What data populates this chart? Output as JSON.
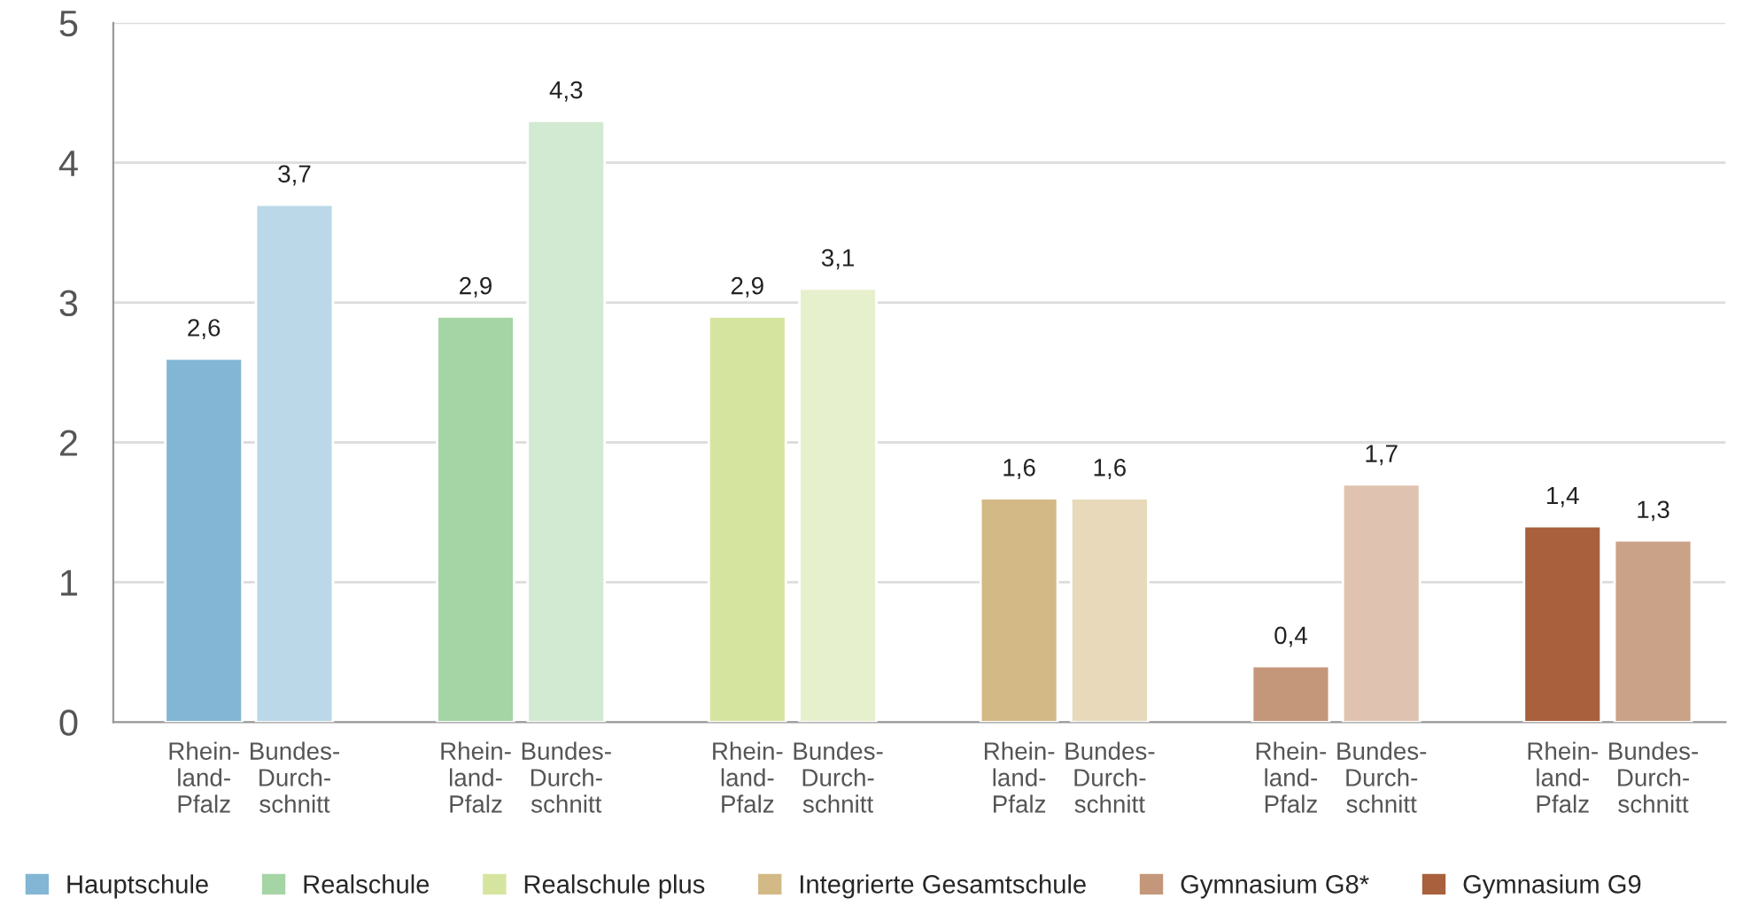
{
  "chart_data": {
    "type": "bar",
    "categories": [
      "Rhein-\nland-\nPfalz",
      "Bundes-\nDurch-\nschnitt",
      "Rhein-\nland-\nPfalz",
      "Bundes-\nDurch-\nschnitt",
      "Rhein-\nland-\nPfalz",
      "Bundes-\nDurch-\nschnitt",
      "Rhein-\nland-\nPfalz",
      "Bundes-\nDurch-\nschnitt",
      "Rhein-\nland-\nPfalz",
      "Bundes-\nDurch-\nschnitt",
      "Rhein-\nland-\nPfalz",
      "Bundes-\nDurch-\nschnitt"
    ],
    "series": [
      {
        "name": "Hauptschule",
        "color": "#82b6d4",
        "colors": [
          "#82b6d4",
          "#bad8e7",
          null,
          null,
          null,
          null,
          null,
          null,
          null,
          null,
          null,
          null
        ],
        "values": [
          2.6,
          3.7,
          null,
          null,
          null,
          null,
          null,
          null,
          null,
          null,
          null,
          null
        ],
        "value_labels": [
          "2,6",
          "3,7",
          null,
          null,
          null,
          null,
          null,
          null,
          null,
          null,
          null,
          null
        ]
      },
      {
        "name": "Realschule",
        "color": "#a5d4a5",
        "colors": [
          null,
          null,
          "#a5d4a5",
          "#d2e9d2",
          null,
          null,
          null,
          null,
          null,
          null,
          null,
          null
        ],
        "values": [
          null,
          null,
          2.9,
          4.3,
          null,
          null,
          null,
          null,
          null,
          null,
          null,
          null
        ],
        "value_labels": [
          null,
          null,
          "2,9",
          "4,3",
          null,
          null,
          null,
          null,
          null,
          null,
          null,
          null
        ]
      },
      {
        "name": "Realschule plus",
        "color": "#d5e59f",
        "colors": [
          null,
          null,
          null,
          null,
          "#d5e59f",
          "#e7f0cd",
          null,
          null,
          null,
          null,
          null,
          null
        ],
        "values": [
          null,
          null,
          null,
          null,
          2.9,
          3.1,
          null,
          null,
          null,
          null,
          null,
          null
        ],
        "value_labels": [
          null,
          null,
          null,
          null,
          "2,9",
          "3,1",
          null,
          null,
          null,
          null,
          null,
          null
        ]
      },
      {
        "name": "Integrierte Gesamtschule",
        "color": "#d3b985",
        "colors": [
          null,
          null,
          null,
          null,
          null,
          null,
          "#d3b985",
          "#e7d9b9",
          null,
          null,
          null,
          null
        ],
        "values": [
          null,
          null,
          null,
          null,
          null,
          null,
          1.6,
          1.6,
          null,
          null,
          null,
          null
        ],
        "value_labels": [
          null,
          null,
          null,
          null,
          null,
          null,
          "1,6",
          "1,6",
          null,
          null,
          null,
          null
        ]
      },
      {
        "name": "Gymnasium G8*",
        "color": "#c4967a",
        "colors": [
          null,
          null,
          null,
          null,
          null,
          null,
          null,
          null,
          "#c4967a",
          "#dfc3b0",
          null,
          null
        ],
        "values": [
          null,
          null,
          null,
          null,
          null,
          null,
          null,
          null,
          0.4,
          1.7,
          null,
          null
        ],
        "value_labels": [
          null,
          null,
          null,
          null,
          null,
          null,
          null,
          null,
          "0,4",
          "1,7",
          null,
          null
        ]
      },
      {
        "name": "Gymnasium G9",
        "color": "#a9603c",
        "colors": [
          null,
          null,
          null,
          null,
          null,
          null,
          null,
          null,
          null,
          null,
          "#a9603c",
          "#c9a287"
        ],
        "values": [
          null,
          null,
          null,
          null,
          null,
          null,
          null,
          null,
          null,
          null,
          1.4,
          1.3
        ],
        "value_labels": [
          null,
          null,
          null,
          null,
          null,
          null,
          null,
          null,
          null,
          null,
          "1,4",
          "1,3"
        ]
      }
    ],
    "ylim": [
      0,
      5
    ],
    "yticks": [
      0,
      1,
      2,
      3,
      4,
      5
    ],
    "grid": "y",
    "legend": "bottom"
  }
}
